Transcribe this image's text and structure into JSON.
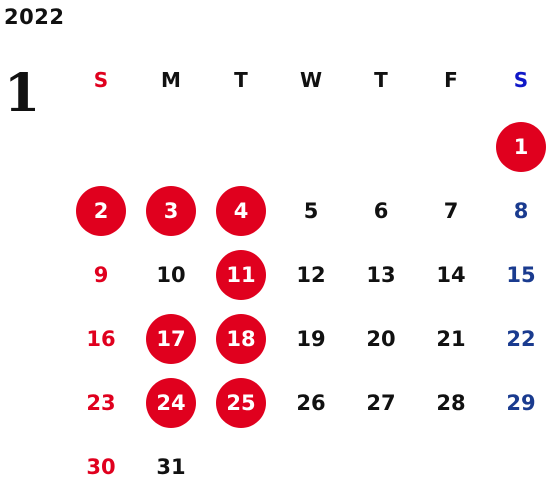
{
  "year": "2022",
  "month": "1",
  "weekdays": [
    "S",
    "M",
    "T",
    "W",
    "T",
    "F",
    "S"
  ],
  "colors": {
    "sunday": "#e0001e",
    "saturday_header": "#1018c8",
    "saturday": "#1a3b8f",
    "highlight": "#e0001e",
    "text": "#111111"
  },
  "days": [
    {
      "label": "1",
      "col": 7,
      "marked": true
    },
    {
      "label": "2",
      "col": 1,
      "marked": true
    },
    {
      "label": "3",
      "col": 2,
      "marked": true
    },
    {
      "label": "4",
      "col": 3,
      "marked": true
    },
    {
      "label": "5",
      "col": 4,
      "marked": false
    },
    {
      "label": "6",
      "col": 5,
      "marked": false
    },
    {
      "label": "7",
      "col": 6,
      "marked": false
    },
    {
      "label": "8",
      "col": 7,
      "marked": false
    },
    {
      "label": "9",
      "col": 1,
      "marked": false
    },
    {
      "label": "10",
      "col": 2,
      "marked": false
    },
    {
      "label": "11",
      "col": 3,
      "marked": true
    },
    {
      "label": "12",
      "col": 4,
      "marked": false
    },
    {
      "label": "13",
      "col": 5,
      "marked": false
    },
    {
      "label": "14",
      "col": 6,
      "marked": false
    },
    {
      "label": "15",
      "col": 7,
      "marked": false
    },
    {
      "label": "16",
      "col": 1,
      "marked": false
    },
    {
      "label": "17",
      "col": 2,
      "marked": true
    },
    {
      "label": "18",
      "col": 3,
      "marked": true
    },
    {
      "label": "19",
      "col": 4,
      "marked": false
    },
    {
      "label": "20",
      "col": 5,
      "marked": false
    },
    {
      "label": "21",
      "col": 6,
      "marked": false
    },
    {
      "label": "22",
      "col": 7,
      "marked": false
    },
    {
      "label": "23",
      "col": 1,
      "marked": false
    },
    {
      "label": "24",
      "col": 2,
      "marked": true
    },
    {
      "label": "25",
      "col": 3,
      "marked": true
    },
    {
      "label": "26",
      "col": 4,
      "marked": false
    },
    {
      "label": "27",
      "col": 5,
      "marked": false
    },
    {
      "label": "28",
      "col": 6,
      "marked": false
    },
    {
      "label": "29",
      "col": 7,
      "marked": false
    },
    {
      "label": "30",
      "col": 1,
      "marked": false
    },
    {
      "label": "31",
      "col": 2,
      "marked": false
    }
  ]
}
